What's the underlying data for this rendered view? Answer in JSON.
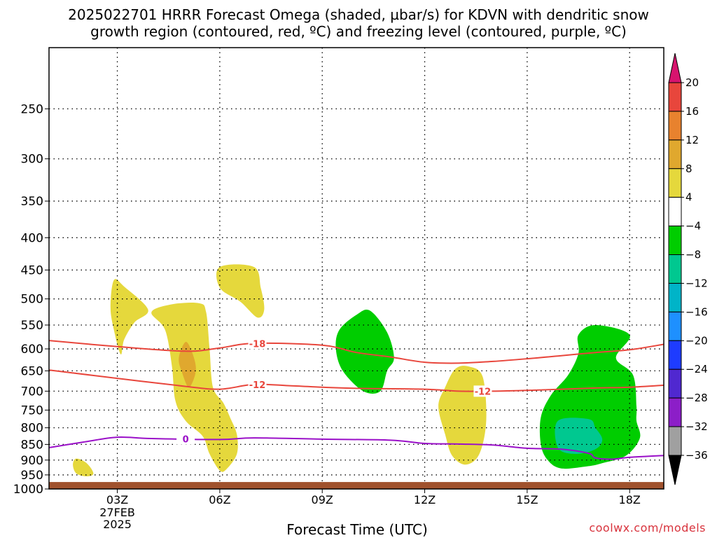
{
  "title": {
    "line1": "2025022701 HRRR Forecast Omega (shaded, µbar/s) for KDVN with dendritic snow",
    "line2": "growth region (contoured, red, ºC) and freezing level (contoured, purple, ºC)"
  },
  "credit": "coolwx.com/models",
  "chart_data": {
    "type": "time-height cross-section",
    "xlabel": "Forecast Time (UTC)",
    "x_ticks": [
      {
        "hour": 3,
        "label": "03Z",
        "sub1": "27FEB",
        "sub2": "2025"
      },
      {
        "hour": 6,
        "label": "06Z"
      },
      {
        "hour": 9,
        "label": "09Z"
      },
      {
        "hour": 12,
        "label": "12Z"
      },
      {
        "hour": 15,
        "label": "15Z"
      },
      {
        "hour": 18,
        "label": "18Z"
      }
    ],
    "xlim": [
      1,
      19
    ],
    "ylabel": "",
    "y_scale": "log-pressure (hPa), inverted",
    "ylim": [
      1000,
      200
    ],
    "y_ticks": [
      250,
      300,
      350,
      400,
      450,
      500,
      550,
      600,
      650,
      700,
      750,
      800,
      850,
      900,
      950,
      1000
    ],
    "grid": true,
    "terrain": {
      "color": "#a0522d",
      "top_hPa": 975
    },
    "contours": [
      {
        "name": "-18",
        "color": "#e8463c",
        "label_at_hour": 7.1,
        "points": [
          [
            1,
            582
          ],
          [
            3,
            595
          ],
          [
            5,
            605
          ],
          [
            6,
            598
          ],
          [
            7,
            588
          ],
          [
            9,
            592
          ],
          [
            10,
            608
          ],
          [
            11,
            618
          ],
          [
            12,
            630
          ],
          [
            13,
            632
          ],
          [
            14,
            628
          ],
          [
            15,
            622
          ],
          [
            16,
            615
          ],
          [
            17,
            608
          ],
          [
            18,
            602
          ],
          [
            19,
            590
          ]
        ]
      },
      {
        "name": "-12",
        "color": "#e8463c",
        "label_at_hour": 7.1,
        "points": [
          [
            1,
            648
          ],
          [
            3,
            668
          ],
          [
            5,
            688
          ],
          [
            6,
            695
          ],
          [
            7,
            683
          ],
          [
            8,
            686
          ],
          [
            9,
            690
          ],
          [
            10,
            693
          ],
          [
            12,
            695
          ],
          [
            13,
            700
          ],
          [
            14,
            700
          ],
          [
            15,
            698
          ],
          [
            16,
            695
          ],
          [
            17,
            692
          ],
          [
            18,
            690
          ],
          [
            19,
            685
          ]
        ]
      },
      {
        "name": "0",
        "color": "#9a10c8",
        "label_at_hour": 5.0,
        "points": [
          [
            1,
            860
          ],
          [
            2,
            843
          ],
          [
            3,
            828
          ],
          [
            4,
            832
          ],
          [
            6,
            835
          ],
          [
            7,
            830
          ],
          [
            9,
            834
          ],
          [
            11,
            837
          ],
          [
            12,
            847
          ],
          [
            13,
            849
          ],
          [
            14,
            852
          ],
          [
            15,
            862
          ],
          [
            16,
            865
          ],
          [
            16.8,
            878
          ],
          [
            17,
            893
          ],
          [
            17.5,
            897
          ],
          [
            18,
            891
          ],
          [
            19,
            885
          ]
        ]
      }
    ],
    "shaded_regions": [
      {
        "value_range": "4 to 8",
        "color": "#e5d83c",
        "points": [
          [
            2.8,
            515
          ],
          [
            2.9,
            467
          ],
          [
            3.2,
            478
          ],
          [
            3.9,
            520
          ],
          [
            3.5,
            545
          ],
          [
            3.2,
            580
          ],
          [
            3.1,
            612
          ],
          [
            2.9,
            560
          ]
        ]
      },
      {
        "value_range": "4 to 8",
        "color": "#e5d83c",
        "points": [
          [
            1.8,
            895
          ],
          [
            2.1,
            910
          ],
          [
            2.3,
            945
          ],
          [
            2.1,
            955
          ],
          [
            1.8,
            945
          ],
          [
            1.7,
            915
          ]
        ]
      },
      {
        "value_range": "4 to 8",
        "color": "#e5d83c",
        "points": [
          [
            4.0,
            525
          ],
          [
            4.6,
            510
          ],
          [
            5.4,
            508
          ],
          [
            5.6,
            525
          ],
          [
            5.7,
            600
          ],
          [
            5.8,
            690
          ],
          [
            6.1,
            730
          ],
          [
            6.3,
            770
          ],
          [
            6.5,
            820
          ],
          [
            6.5,
            880
          ],
          [
            6.2,
            930
          ],
          [
            6.0,
            935
          ],
          [
            5.7,
            880
          ],
          [
            5.5,
            825
          ],
          [
            5.0,
            780
          ],
          [
            4.7,
            725
          ],
          [
            4.6,
            640
          ],
          [
            4.4,
            560
          ]
        ]
      },
      {
        "value_range": "8 to 12",
        "color": "#e0a82e",
        "points": [
          [
            5.0,
            585
          ],
          [
            5.2,
            610
          ],
          [
            5.3,
            650
          ],
          [
            5.1,
            690
          ],
          [
            4.9,
            655
          ],
          [
            4.8,
            620
          ]
        ]
      },
      {
        "value_range": "4 to 8",
        "color": "#e5d83c",
        "points": [
          [
            6.0,
            445
          ],
          [
            7.0,
            445
          ],
          [
            7.2,
            480
          ],
          [
            7.3,
            520
          ],
          [
            7.1,
            535
          ],
          [
            6.6,
            505
          ],
          [
            6.0,
            480
          ]
        ]
      },
      {
        "value_range": "4 to 8",
        "color": "#e5d83c",
        "points": [
          [
            12.9,
            645
          ],
          [
            13.3,
            640
          ],
          [
            13.7,
            665
          ],
          [
            13.8,
            780
          ],
          [
            13.6,
            880
          ],
          [
            13.2,
            915
          ],
          [
            12.8,
            885
          ],
          [
            12.6,
            820
          ],
          [
            12.4,
            740
          ],
          [
            12.6,
            690
          ]
        ]
      },
      {
        "value_range": "-8 to -4",
        "color": "#00cd00",
        "points": [
          [
            10.0,
            530
          ],
          [
            10.4,
            522
          ],
          [
            10.9,
            565
          ],
          [
            11.1,
            620
          ],
          [
            10.9,
            650
          ],
          [
            10.7,
            700
          ],
          [
            10.2,
            700
          ],
          [
            9.6,
            650
          ],
          [
            9.4,
            600
          ],
          [
            9.5,
            560
          ]
        ]
      },
      {
        "value_range": "-8 to -4",
        "color": "#00cd00",
        "points": [
          [
            16.5,
            570
          ],
          [
            17.0,
            550
          ],
          [
            18.0,
            570
          ],
          [
            17.6,
            620
          ],
          [
            18.1,
            660
          ],
          [
            18.2,
            740
          ],
          [
            18.2,
            780
          ],
          [
            18.3,
            830
          ],
          [
            17.9,
            885
          ],
          [
            17.2,
            910
          ],
          [
            16.8,
            920
          ],
          [
            16.0,
            928
          ],
          [
            15.6,
            900
          ],
          [
            15.4,
            850
          ],
          [
            15.4,
            770
          ],
          [
            15.7,
            710
          ],
          [
            16.2,
            660
          ],
          [
            16.5,
            610
          ]
        ]
      },
      {
        "value_range": "-12 to -8",
        "color": "#00c890",
        "points": [
          [
            15.9,
            780
          ],
          [
            16.8,
            775
          ],
          [
            17.0,
            800
          ],
          [
            17.2,
            835
          ],
          [
            17.0,
            865
          ],
          [
            16.4,
            880
          ],
          [
            15.9,
            860
          ]
        ]
      }
    ]
  },
  "colorbar": {
    "labels": [
      "20",
      "16",
      "12",
      "8",
      "4",
      "−4",
      "−8",
      "−12",
      "−16",
      "−20",
      "−24",
      "−28",
      "−32",
      "−36"
    ],
    "colors": [
      "#e8463c",
      "#e8822e",
      "#e0a82e",
      "#e5d83c",
      "#ffffff",
      "#00cd00",
      "#00c890",
      "#00b4c8",
      "#1e90ff",
      "#1e3cff",
      "#5028d0",
      "#8c1ec8",
      "#a0a0a0"
    ],
    "top_arrow_color": "#d7146e",
    "bottom_arrow_color": "#000000"
  }
}
